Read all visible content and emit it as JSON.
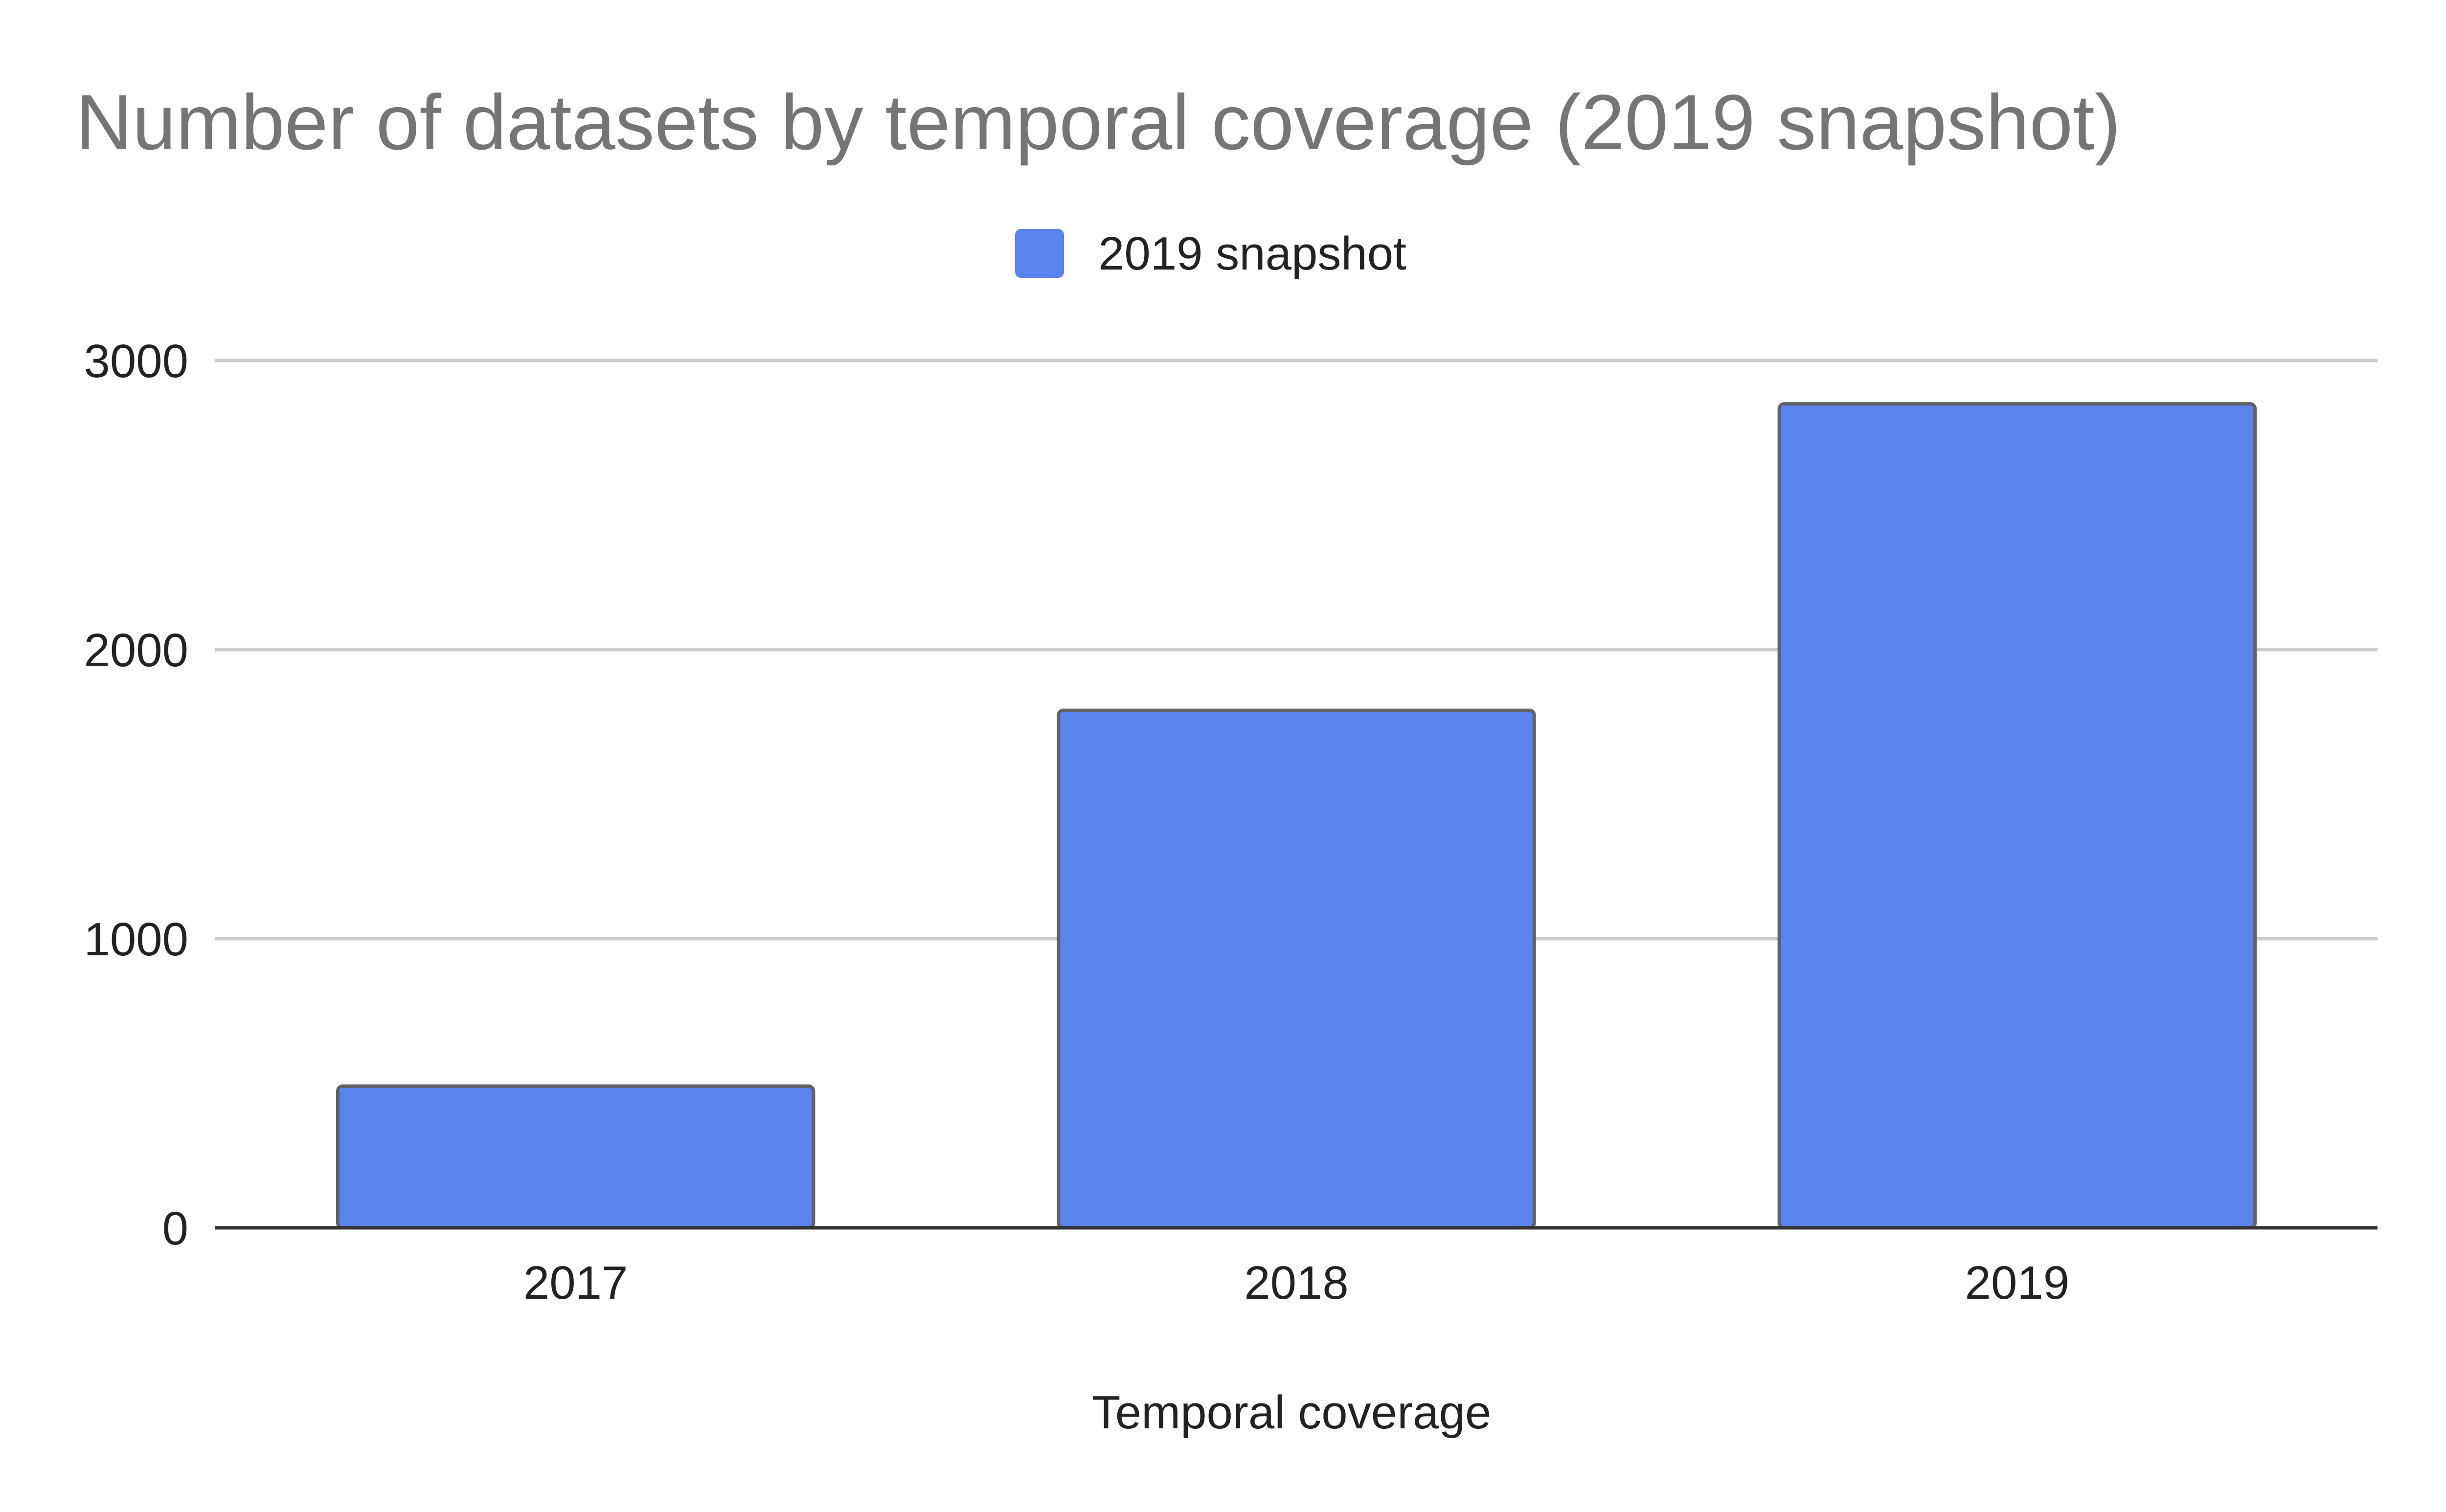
{
  "chart_data": {
    "type": "bar",
    "title": "Number of datasets by temporal coverage (2019 snapshot)",
    "xlabel": "Temporal coverage",
    "ylabel": "",
    "categories": [
      "2017",
      "2018",
      "2019"
    ],
    "series": [
      {
        "name": "2019 snapshot",
        "values": [
          490,
          1790,
          2850
        ],
        "color": "#5b83ee"
      }
    ],
    "ylim": [
      0,
      3000
    ],
    "yticks": [
      0,
      1000,
      2000,
      3000
    ],
    "grid": true,
    "legend_position": "top-center"
  }
}
